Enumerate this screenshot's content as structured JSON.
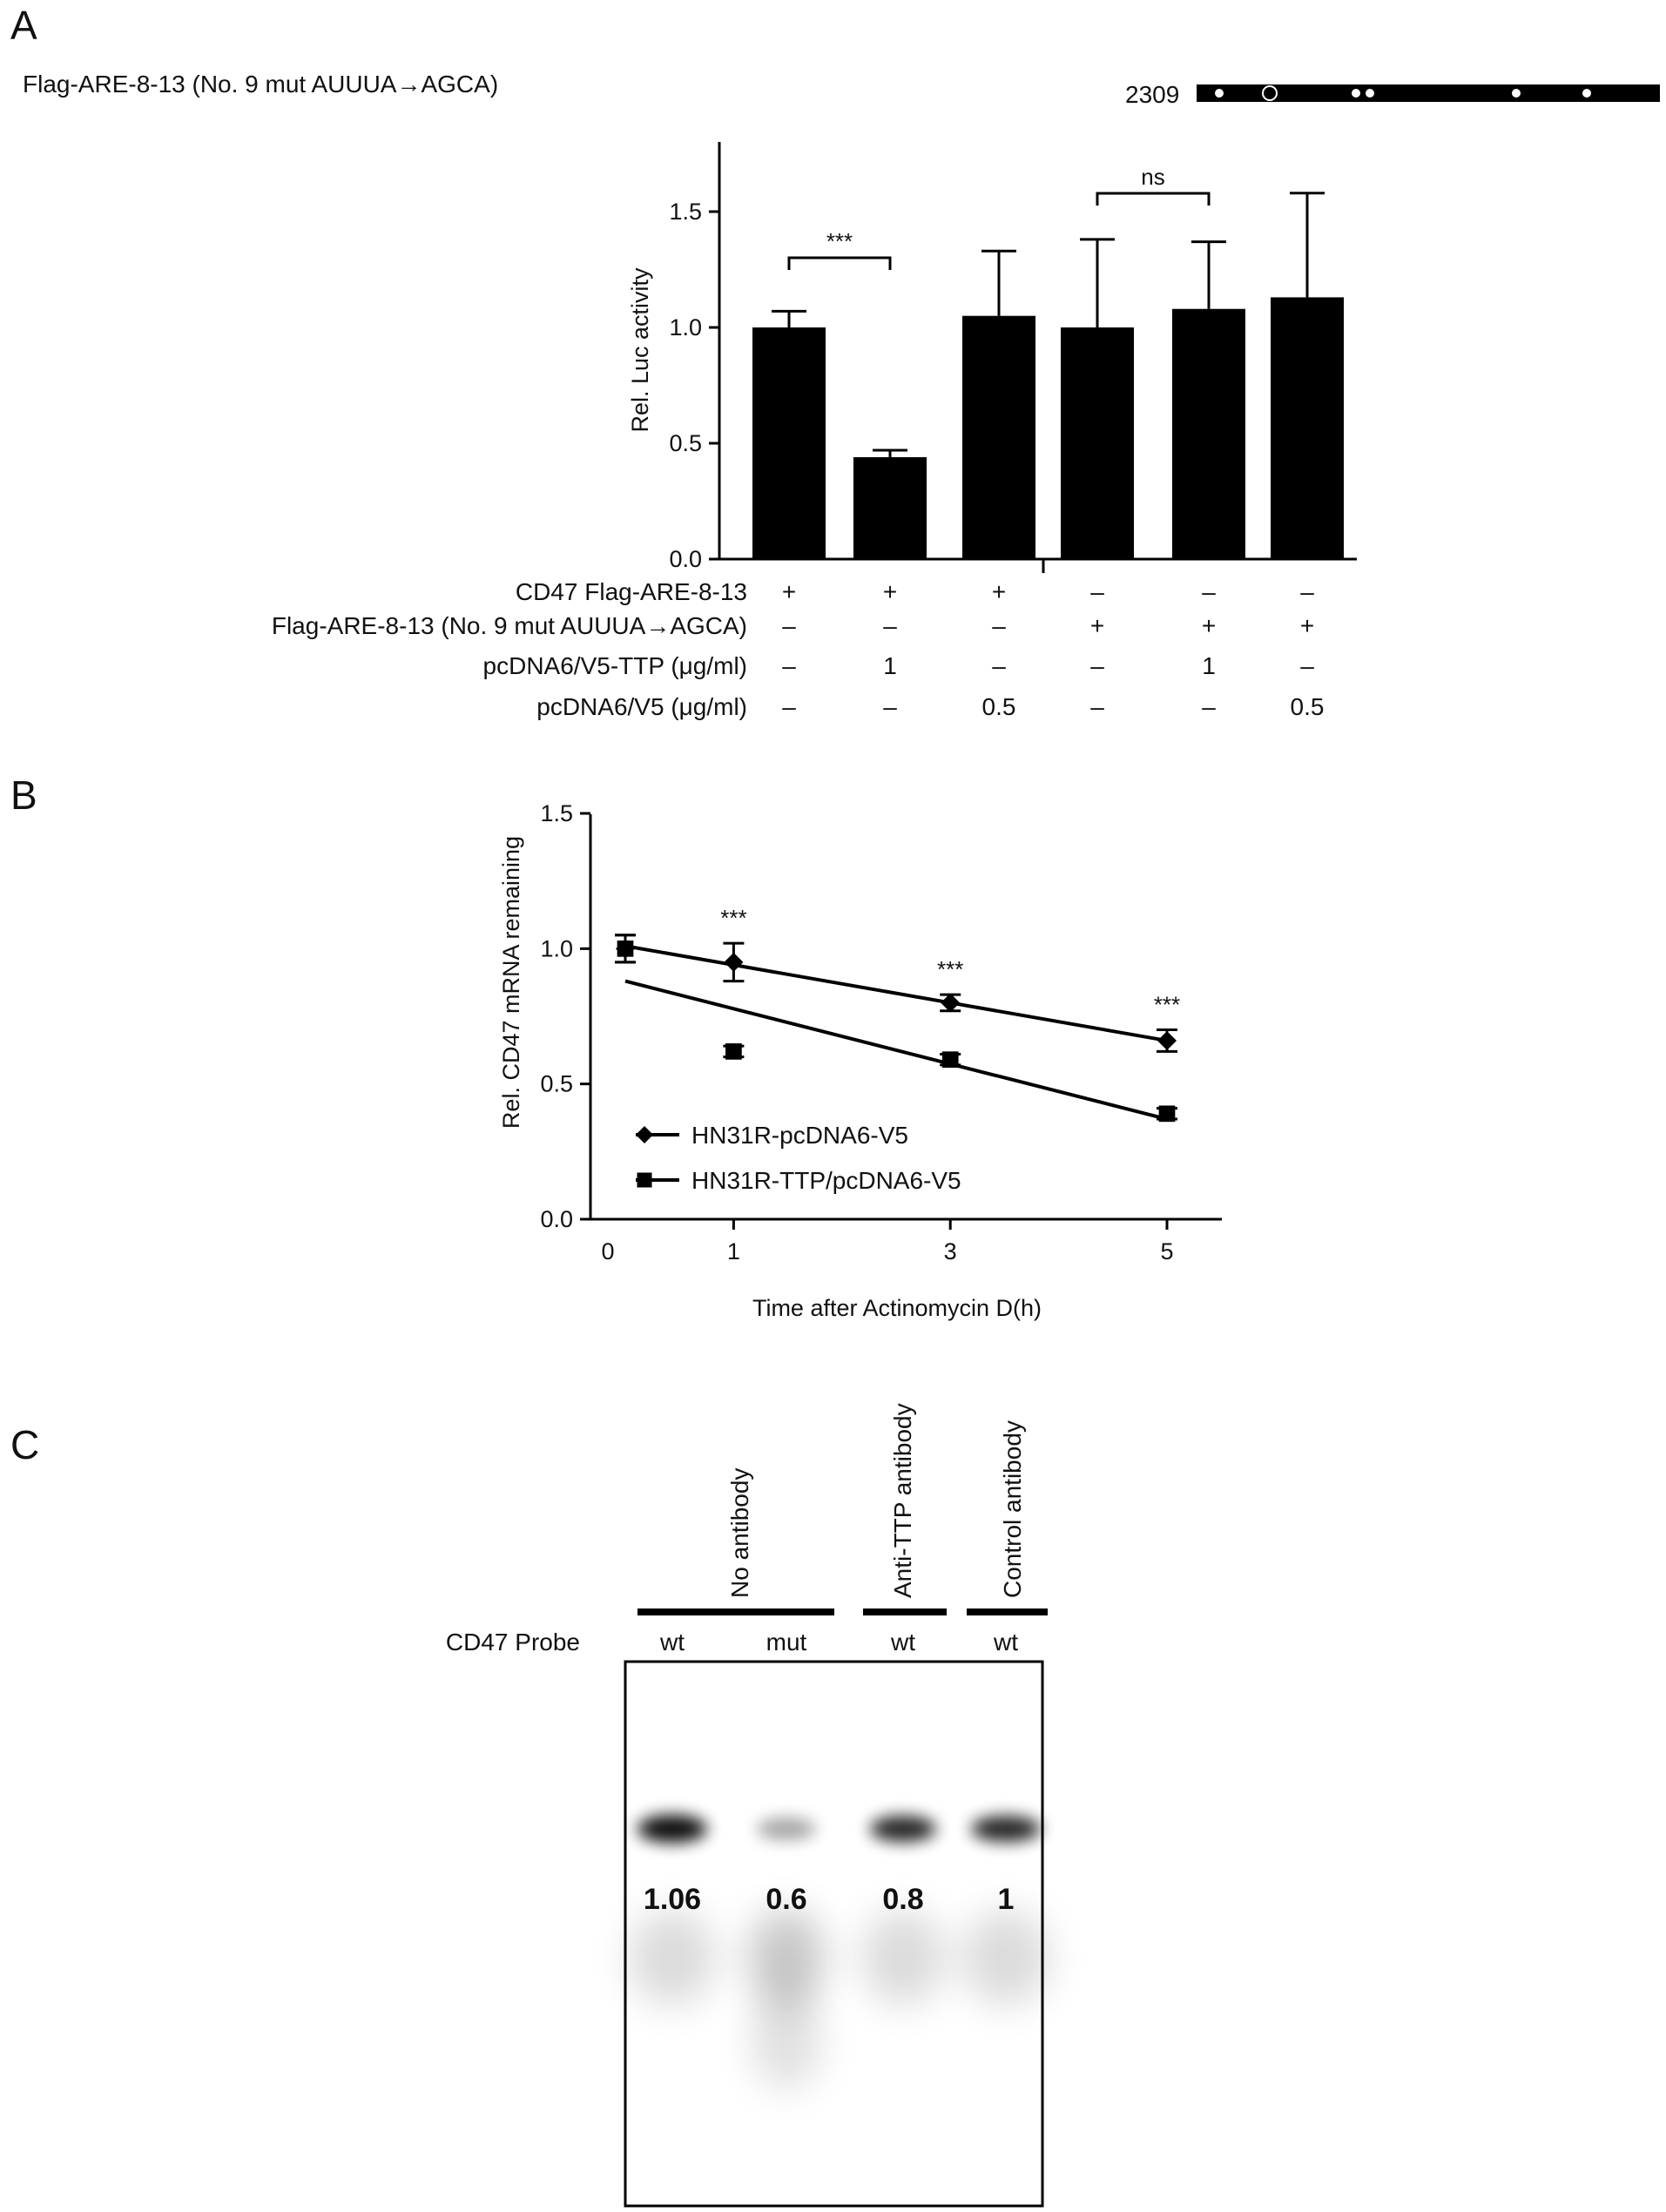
{
  "panels": {
    "a": {
      "letter": "A",
      "construct_label": "Flag-ARE-8-13 (No. 9 mut AUUUA→AGCA)",
      "construct_position": "2309",
      "ylabel": "Rel. Luc activity",
      "y_ticks": [
        "0.0",
        "0.5",
        "1.0",
        "1.5"
      ],
      "significance": [
        {
          "label": "***",
          "from": 0,
          "to": 1
        },
        {
          "label": "ns",
          "from": 3,
          "to": 4
        }
      ],
      "conditions": [
        {
          "label": "CD47 Flag-ARE-8-13",
          "values": [
            "+",
            "+",
            "+",
            "–",
            "–",
            "–"
          ]
        },
        {
          "label": "Flag-ARE-8-13 (No. 9 mut AUUUA→AGCA)",
          "values": [
            "–",
            "–",
            "–",
            "+",
            "+",
            "+"
          ]
        },
        {
          "label": "pcDNA6/V5-TTP (μg/ml)",
          "values": [
            "–",
            "1",
            "–",
            "–",
            "1",
            "–"
          ]
        },
        {
          "label": "pcDNA6/V5 (μg/ml)",
          "values": [
            "–",
            "–",
            "0.5",
            "–",
            "–",
            "0.5"
          ]
        }
      ]
    },
    "b": {
      "letter": "B",
      "xlabel": "Time after Actinomycin D(h)",
      "ylabel": "Rel. CD47 mRNA remaining",
      "x_ticks": [
        "0",
        "1",
        "3",
        "5"
      ],
      "y_ticks": [
        "0.0",
        "0.5",
        "1.0",
        "1.5"
      ],
      "significance": [
        "***",
        "***",
        "***"
      ]
    },
    "c": {
      "letter": "C",
      "probe_label": "CD47 Probe",
      "groups": [
        "No antibody",
        "Anti-TTP antibody",
        "Control antibody"
      ],
      "lanes": [
        "wt",
        "mut",
        "wt",
        "wt"
      ],
      "band_values": [
        "1.06",
        "0.6",
        "0.8",
        "1"
      ]
    }
  },
  "chart_data": [
    {
      "type": "bar",
      "panel": "A",
      "ylabel": "Rel. Luc activity",
      "ylim": [
        0,
        1.8
      ],
      "categories": [
        "1",
        "2",
        "3",
        "4",
        "5",
        "6"
      ],
      "values": [
        1.0,
        0.44,
        1.05,
        1.0,
        1.08,
        1.13
      ],
      "errors": [
        0.07,
        0.03,
        0.28,
        0.38,
        0.29,
        0.45
      ],
      "bar_color": "#000000",
      "annotations": [
        {
          "label": "***",
          "between": [
            1,
            2
          ]
        },
        {
          "label": "ns",
          "between": [
            4,
            5
          ]
        }
      ]
    },
    {
      "type": "line",
      "panel": "B",
      "xlabel": "Time after Actinomycin D(h)",
      "ylabel": "Rel. CD47 mRNA remaining",
      "xlim": [
        0,
        5.5
      ],
      "ylim": [
        0,
        1.5
      ],
      "legend_position": "bottom-left",
      "series": [
        {
          "name": "HN31R-pcDNA6-V5",
          "marker": "diamond",
          "x": [
            0,
            1,
            3,
            5
          ],
          "y": [
            1.0,
            0.95,
            0.8,
            0.66
          ],
          "errors": [
            0.05,
            0.07,
            0.03,
            0.04
          ],
          "fit": [
            [
              0,
              1.01
            ],
            [
              5,
              0.66
            ]
          ]
        },
        {
          "name": "HN31R-TTP/pcDNA6-V5",
          "marker": "square",
          "x": [
            0,
            1,
            3,
            5
          ],
          "y": [
            1.0,
            0.62,
            0.59,
            0.39
          ],
          "errors": [
            0.05,
            0.02,
            0.02,
            0.02
          ],
          "fit": [
            [
              0,
              0.88
            ],
            [
              5,
              0.37
            ]
          ]
        }
      ],
      "annotations": [
        {
          "label": "***",
          "x": 1
        },
        {
          "label": "***",
          "x": 3
        },
        {
          "label": "***",
          "x": 5
        }
      ]
    }
  ]
}
